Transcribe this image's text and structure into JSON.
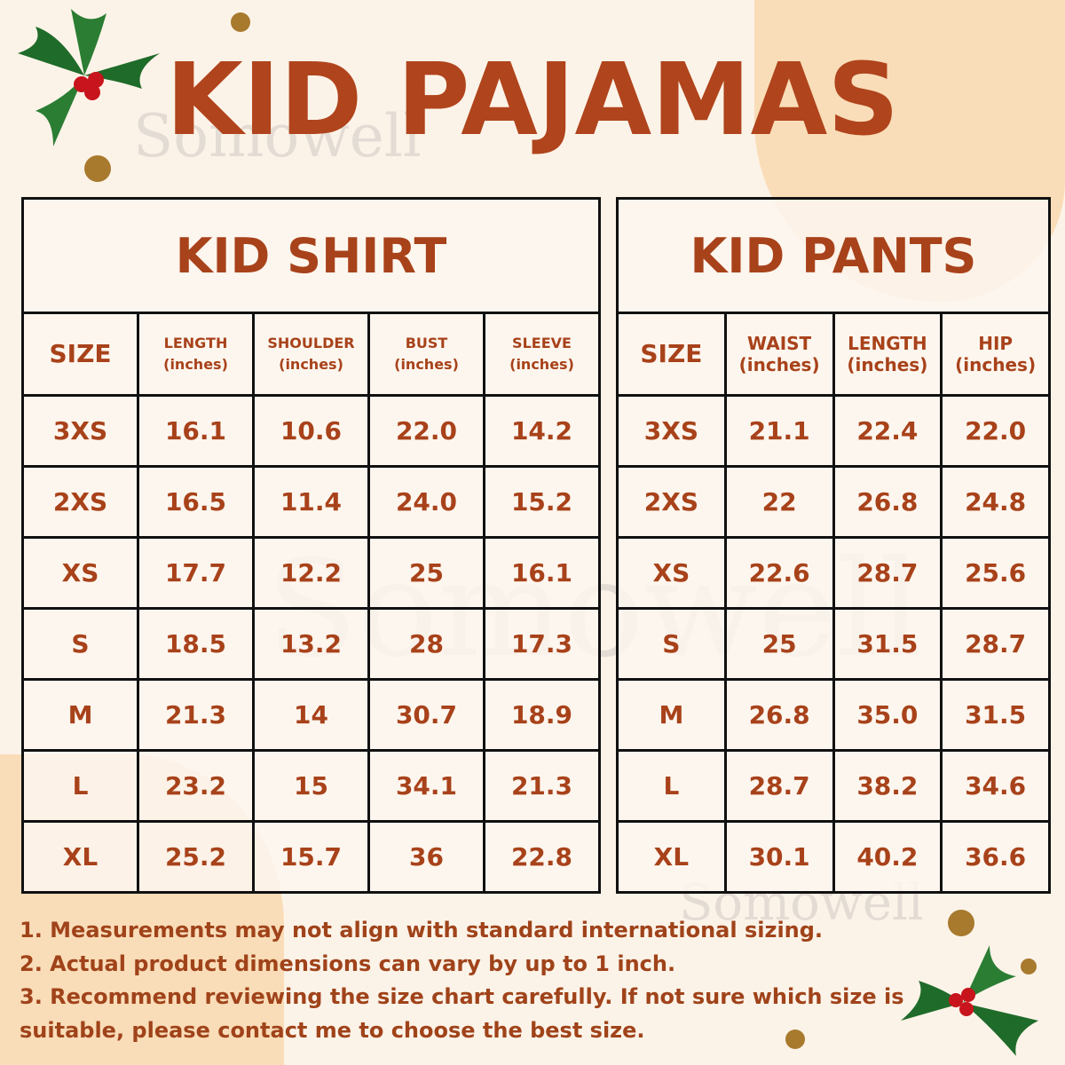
{
  "title": "KID PAJAMAS",
  "watermark": "Somowell",
  "colors": {
    "accent": "#a8421a",
    "background": "#fcf3e8",
    "blob": "#f9ddb8"
  },
  "shirt": {
    "heading": "KID SHIRT",
    "columns": [
      {
        "label": "SIZE",
        "unit": ""
      },
      {
        "label": "LENGTH",
        "unit": "(inches)"
      },
      {
        "label": "SHOULDER",
        "unit": "(inches)"
      },
      {
        "label": "BUST",
        "unit": "(inches)"
      },
      {
        "label": "SLEEVE",
        "unit": "(inches)"
      }
    ],
    "rows": [
      [
        "3XS",
        "16.1",
        "10.6",
        "22.0",
        "14.2"
      ],
      [
        "2XS",
        "16.5",
        "11.4",
        "24.0",
        "15.2"
      ],
      [
        "XS",
        "17.7",
        "12.2",
        "25",
        "16.1"
      ],
      [
        "S",
        "18.5",
        "13.2",
        "28",
        "17.3"
      ],
      [
        "M",
        "21.3",
        "14",
        "30.7",
        "18.9"
      ],
      [
        "L",
        "23.2",
        "15",
        "34.1",
        "21.3"
      ],
      [
        "XL",
        "25.2",
        "15.7",
        "36",
        "22.8"
      ]
    ]
  },
  "pants": {
    "heading": "KID PANTS",
    "columns": [
      {
        "label": "SIZE",
        "unit": ""
      },
      {
        "label": "WAIST",
        "unit": "(inches)"
      },
      {
        "label": "LENGTH",
        "unit": "(inches)"
      },
      {
        "label": "HIP",
        "unit": "(inches)"
      }
    ],
    "rows": [
      [
        "3XS",
        "21.1",
        "22.4",
        "22.0"
      ],
      [
        "2XS",
        "22",
        "26.8",
        "24.8"
      ],
      [
        "XS",
        "22.6",
        "28.7",
        "25.6"
      ],
      [
        "S",
        "25",
        "31.5",
        "28.7"
      ],
      [
        "M",
        "26.8",
        "35.0",
        "31.5"
      ],
      [
        "L",
        "28.7",
        "38.2",
        "34.6"
      ],
      [
        "XL",
        "30.1",
        "40.2",
        "36.6"
      ]
    ]
  },
  "notes": [
    "1. Measurements may not align with standard international sizing.",
    "2. Actual product dimensions can vary by up to 1 inch.",
    "3. Recommend reviewing the size chart carefully. If not sure which size is suitable, please contact me to choose the best size."
  ]
}
